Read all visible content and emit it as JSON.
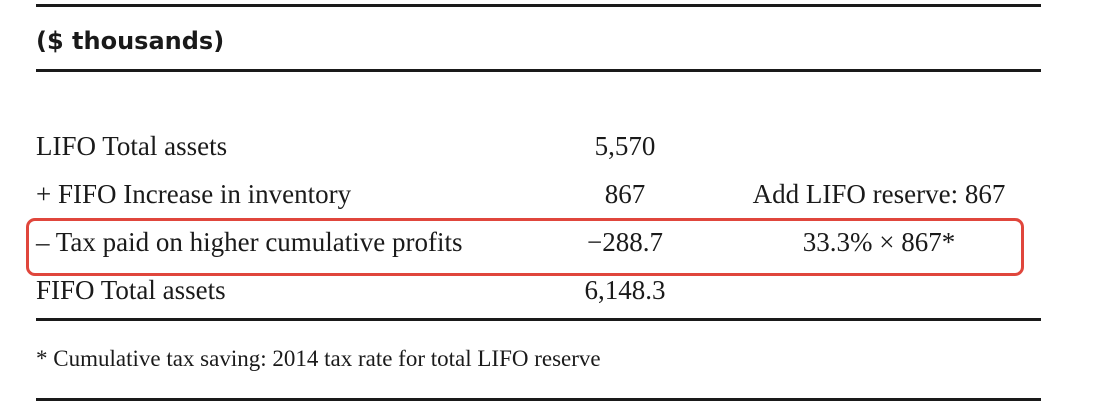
{
  "table": {
    "header": "($ thousands)",
    "rows": [
      {
        "label": "LIFO Total assets",
        "value": "5,570",
        "note": ""
      },
      {
        "label": "+ FIFO Increase in inventory",
        "value": "867",
        "note": "Add LIFO reserve: 867"
      },
      {
        "label": "– Tax paid on higher cumulative profits",
        "value": "−288.7",
        "note": "33.3% × 867*"
      },
      {
        "label": "FIFO Total assets",
        "value": "6,148.3",
        "note": ""
      }
    ],
    "footnote": "* Cumulative tax saving: 2014 tax rate for total LIFO reserve"
  },
  "colors": {
    "highlight_border": "#e0463c",
    "text": "#1a1a1a",
    "background": "#ffffff"
  }
}
